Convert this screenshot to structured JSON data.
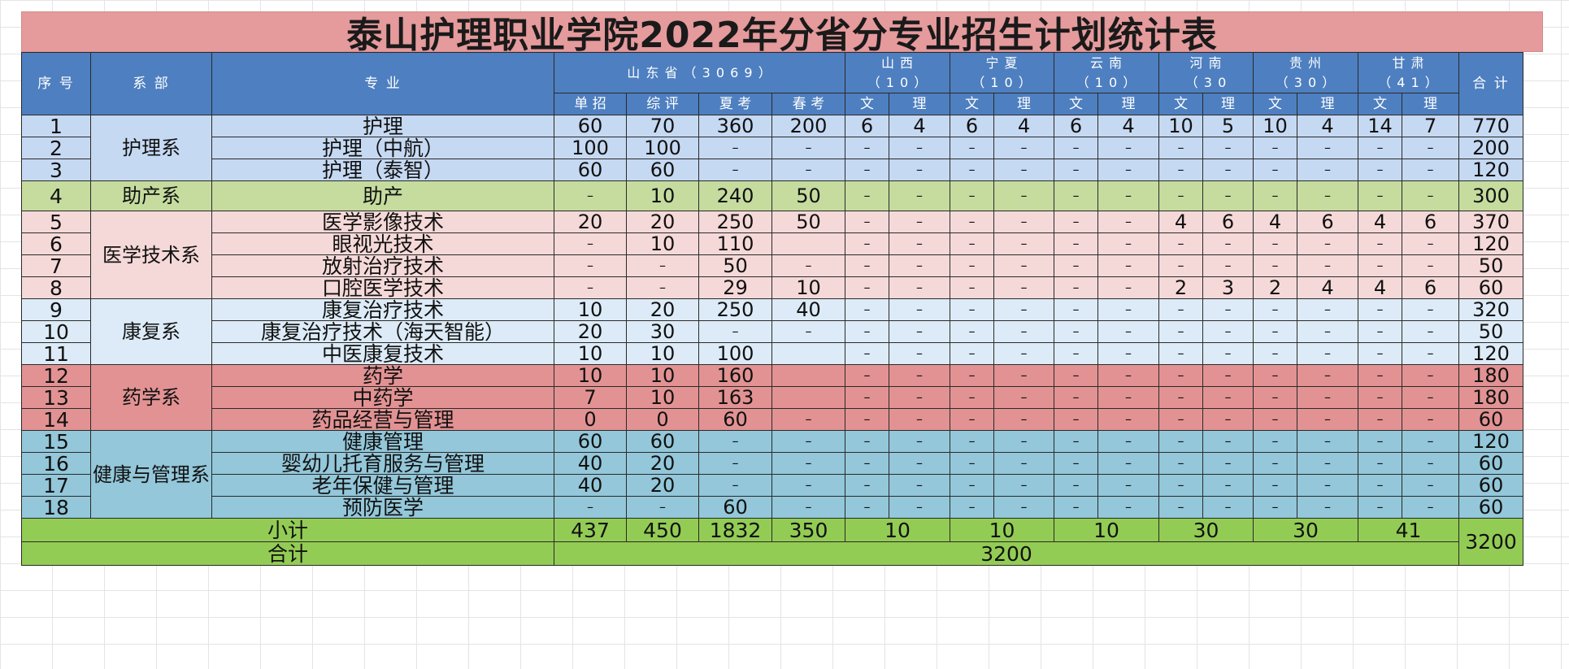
{
  "title": "泰山护理职业学院2022年分省分专业招生计划统计表",
  "headers": {
    "seq": "序  号",
    "dept": "系  部",
    "major": "专     业",
    "shandong": "山  东  省  （ 3 0 6 9 ）",
    "shanxi": [
      "山  西",
      "（ 1 0 ）"
    ],
    "ningxia": [
      "宁  夏",
      "（ 1 0 ）"
    ],
    "yunnan": [
      "云  南",
      "（ 1 0 ）"
    ],
    "henan": [
      "河  南",
      "（ 3 0"
    ],
    "guizhou": [
      "贵  州",
      "（ 3 0 ）"
    ],
    "gansu": [
      "甘  肃",
      "（ 4 1 ）"
    ],
    "total": "合  计",
    "sd_sub": [
      "单 招",
      "综 评",
      "夏 考",
      "春 考"
    ],
    "wen": "文",
    "li": "理"
  },
  "departments": [
    "护理系",
    "助产系",
    "医学技术系",
    "康复系",
    "药学系",
    "健康与管理系"
  ],
  "rows": [
    {
      "seq": "1",
      "major": "护理",
      "v": [
        "60",
        "70",
        "360",
        "200",
        "6",
        "4",
        "6",
        "4",
        "6",
        "4",
        "10",
        "5",
        "10",
        "4",
        "14",
        "7"
      ],
      "total": "770"
    },
    {
      "seq": "2",
      "major": "护理（中航）",
      "v": [
        "100",
        "100",
        "–",
        "–",
        "–",
        "–",
        "–",
        "–",
        "–",
        "–",
        "–",
        "–",
        "–",
        "–",
        "–",
        "–"
      ],
      "total": "200"
    },
    {
      "seq": "3",
      "major": "护理（泰智）",
      "v": [
        "60",
        "60",
        "–",
        "–",
        "–",
        "–",
        "–",
        "–",
        "–",
        "–",
        "–",
        "–",
        "–",
        "–",
        "–",
        "–"
      ],
      "total": "120"
    },
    {
      "seq": "4",
      "major": "助产",
      "v": [
        "–",
        "10",
        "240",
        "50",
        "–",
        "–",
        "–",
        "–",
        "–",
        "–",
        "–",
        "–",
        "–",
        "–",
        "–",
        "–"
      ],
      "total": "300"
    },
    {
      "seq": "5",
      "major": "医学影像技术",
      "v": [
        "20",
        "20",
        "250",
        "50",
        "–",
        "–",
        "–",
        "–",
        "–",
        "–",
        "4",
        "6",
        "4",
        "6",
        "4",
        "6"
      ],
      "total": "370"
    },
    {
      "seq": "6",
      "major": "眼视光技术",
      "v": [
        "–",
        "10",
        "110",
        "",
        "–",
        "–",
        "–",
        "–",
        "–",
        "–",
        "–",
        "–",
        "–",
        "–",
        "–",
        "–"
      ],
      "total": "120"
    },
    {
      "seq": "7",
      "major": "放射治疗技术",
      "v": [
        "–",
        "–",
        "50",
        "–",
        "–",
        "–",
        "–",
        "–",
        "–",
        "–",
        "–",
        "–",
        "–",
        "–",
        "–",
        "–"
      ],
      "total": "50"
    },
    {
      "seq": "8",
      "major": "口腔医学技术",
      "v": [
        "–",
        "–",
        "29",
        "10",
        "–",
        "–",
        "–",
        "–",
        "–",
        "–",
        "2",
        "3",
        "2",
        "4",
        "4",
        "6"
      ],
      "total": "60"
    },
    {
      "seq": "9",
      "major": "康复治疗技术",
      "v": [
        "10",
        "20",
        "250",
        "40",
        "–",
        "–",
        "–",
        "–",
        "–",
        "–",
        "–",
        "–",
        "–",
        "–",
        "–",
        "–"
      ],
      "total": "320"
    },
    {
      "seq": "10",
      "major": "康复治疗技术（海天智能）",
      "v": [
        "20",
        "30",
        "–",
        "–",
        "–",
        "–",
        "–",
        "–",
        "–",
        "–",
        "–",
        "–",
        "–",
        "–",
        "–",
        "–"
      ],
      "total": "50"
    },
    {
      "seq": "11",
      "major": "中医康复技术",
      "v": [
        "10",
        "10",
        "100",
        "",
        "–",
        "–",
        "–",
        "–",
        "–",
        "–",
        "–",
        "–",
        "–",
        "–",
        "–",
        "–"
      ],
      "total": "120"
    },
    {
      "seq": "12",
      "major": "药学",
      "v": [
        "10",
        "10",
        "160",
        "",
        "–",
        "–",
        "–",
        "–",
        "–",
        "–",
        "–",
        "–",
        "–",
        "–",
        "–",
        "–"
      ],
      "total": "180"
    },
    {
      "seq": "13",
      "major": "中药学",
      "v": [
        "7",
        "10",
        "163",
        "",
        "–",
        "–",
        "–",
        "–",
        "–",
        "–",
        "–",
        "–",
        "–",
        "–",
        "–",
        "–"
      ],
      "total": "180"
    },
    {
      "seq": "14",
      "major": "药品经营与管理",
      "v": [
        "0",
        "0",
        "60",
        "–",
        "–",
        "–",
        "–",
        "–",
        "–",
        "–",
        "–",
        "–",
        "–",
        "–",
        "–",
        "–"
      ],
      "total": "60"
    },
    {
      "seq": "15",
      "major": "健康管理",
      "v": [
        "60",
        "60",
        "–",
        "–",
        "–",
        "–",
        "–",
        "–",
        "–",
        "–",
        "–",
        "–",
        "–",
        "–",
        "–",
        "–"
      ],
      "total": "120"
    },
    {
      "seq": "16",
      "major": "婴幼儿托育服务与管理",
      "v": [
        "40",
        "20",
        "–",
        "–",
        "–",
        "–",
        "–",
        "–",
        "–",
        "–",
        "–",
        "–",
        "–",
        "–",
        "–",
        "–"
      ],
      "total": "60"
    },
    {
      "seq": "17",
      "major": "老年保健与管理",
      "v": [
        "40",
        "20",
        "–",
        "–",
        "–",
        "–",
        "–",
        "–",
        "–",
        "–",
        "–",
        "–",
        "–",
        "–",
        "–",
        "–"
      ],
      "total": "60"
    },
    {
      "seq": "18",
      "major": "预防医学",
      "v": [
        "–",
        "–",
        "60",
        "–",
        "–",
        "–",
        "–",
        "–",
        "–",
        "–",
        "–",
        "–",
        "–",
        "–",
        "–",
        "–"
      ],
      "total": "60"
    }
  ],
  "subtotal": {
    "label": "小计",
    "sd": [
      "437",
      "450",
      "1832",
      "350"
    ],
    "provinces": [
      "10",
      "10",
      "10",
      "30",
      "30",
      "41"
    ],
    "total": "3200"
  },
  "grand": {
    "label": "合计",
    "value": "3200"
  },
  "colors": {
    "title_bg": "#e59a9c",
    "header_bg": "#4e7fc0",
    "nursing": "#c6d9f3",
    "midwifery": "#c5dc9e",
    "medtech": "#f5d9d8",
    "rehab": "#dcebf7",
    "pharmacy": "#e29293",
    "health": "#93c7d9",
    "subtotal": "#93cc54"
  }
}
